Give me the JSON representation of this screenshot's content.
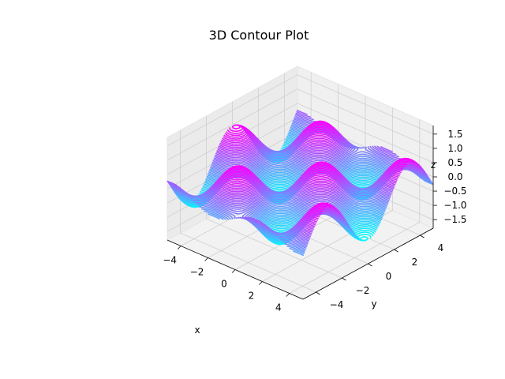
{
  "chart_data": {
    "type": "contour3d",
    "title": "3D Contour Plot",
    "xlabel": "x",
    "ylabel": "y",
    "zlabel": "z",
    "function": "z = sin(x) * cos(y)",
    "x_range": [
      -5,
      5
    ],
    "y_range": [
      -5,
      5
    ],
    "z_range": [
      -1.8,
      1.8
    ],
    "x_ticks": [
      "−4",
      "−2",
      "0",
      "2",
      "4"
    ],
    "y_ticks": [
      "−4",
      "−2",
      "0",
      "2",
      "4"
    ],
    "z_ticks": [
      "−1.5",
      "−1.0",
      "−0.5",
      "0.0",
      "0.5",
      "1.0",
      "1.5"
    ],
    "contour_levels": 50,
    "colormap": "cool",
    "colors": {
      "low": "#00ffff",
      "high": "#ff00ff",
      "pane": "#f2f2f2",
      "grid": "#cfcfcf"
    },
    "grid": true
  }
}
